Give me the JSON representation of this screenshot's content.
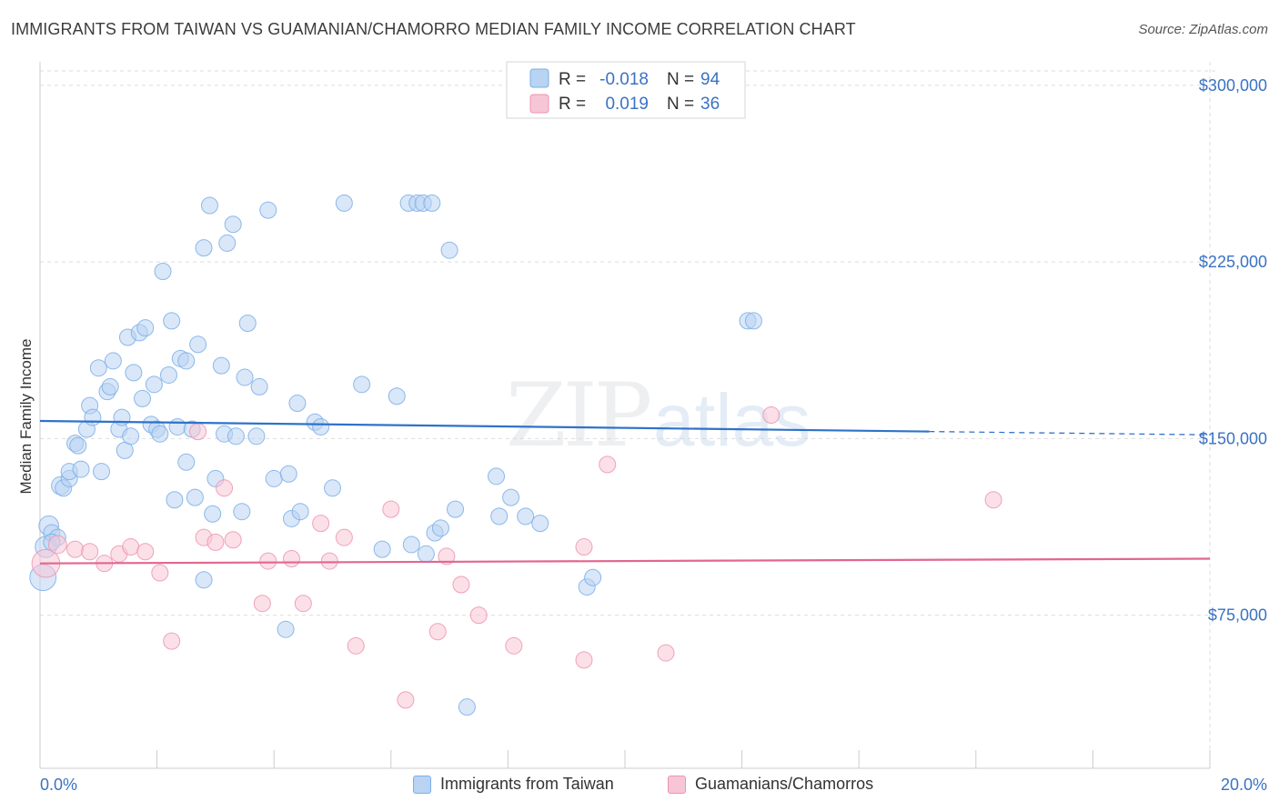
{
  "title": "IMMIGRANTS FROM TAIWAN VS GUAMANIAN/CHAMORRO MEDIAN FAMILY INCOME CORRELATION CHART",
  "source": "Source: ZipAtlas.com",
  "colors": {
    "blue": "#7aaee8",
    "blue_fill": "#b9d3f3",
    "blue_line": "#2f72c9",
    "pink": "#ee93b2",
    "pink_fill": "#f7c6d6",
    "pink_line": "#e2668f",
    "tick_text": "#3a72c4",
    "grid": "#dddddd"
  },
  "legend": {
    "rows": [
      {
        "r_label": "R =",
        "r_value": "-0.018",
        "n_label": "N =",
        "n_value": "94"
      },
      {
        "r_label": "R =",
        "r_value": "0.019",
        "n_label": "N =",
        "n_value": "36"
      }
    ]
  },
  "watermark": {
    "zip": "ZIP",
    "atlas": "atlas"
  },
  "chart_data": {
    "type": "scatter",
    "xlabel": "",
    "ylabel": "Median Family Income",
    "xlim": [
      0,
      20
    ],
    "ylim": [
      10000,
      310000
    ],
    "x_tick_labels": [
      "0.0%",
      "20.0%"
    ],
    "y_ticks": [
      75000,
      150000,
      225000,
      300000
    ],
    "y_tick_labels": [
      "$75,000",
      "$150,000",
      "$225,000",
      "$300,000"
    ],
    "grid": true,
    "legend_position": "top-center",
    "series": [
      {
        "name": "Immigrants from Taiwan",
        "trend": {
          "x0": 0,
          "y0": 157500,
          "x1": 15.2,
          "y1": 153000,
          "x_dash_end": 20,
          "y_dash_end": 151600
        },
        "points": [
          [
            0.05,
            91000,
            1.6
          ],
          [
            0.1,
            104000,
            1.3
          ],
          [
            0.15,
            113000,
            1.2
          ],
          [
            0.2,
            110000,
            1
          ],
          [
            0.3,
            108000,
            1
          ],
          [
            0.35,
            130000,
            1.1
          ],
          [
            0.4,
            129000,
            1
          ],
          [
            0.5,
            133000,
            1
          ],
          [
            0.5,
            136000,
            1
          ],
          [
            0.6,
            148000,
            1
          ],
          [
            0.65,
            147000,
            1
          ],
          [
            0.7,
            137000,
            1
          ],
          [
            0.8,
            154000,
            1
          ],
          [
            0.85,
            164000,
            1
          ],
          [
            0.9,
            159000,
            1
          ],
          [
            1.0,
            180000,
            1
          ],
          [
            1.05,
            136000,
            1
          ],
          [
            1.15,
            170000,
            1
          ],
          [
            1.2,
            172000,
            1
          ],
          [
            1.25,
            183000,
            1
          ],
          [
            1.35,
            154000,
            1
          ],
          [
            1.4,
            159000,
            1
          ],
          [
            1.45,
            145000,
            1
          ],
          [
            1.5,
            193000,
            1
          ],
          [
            1.55,
            151000,
            1
          ],
          [
            1.6,
            178000,
            1
          ],
          [
            1.7,
            195000,
            1
          ],
          [
            1.75,
            167000,
            1
          ],
          [
            1.8,
            197000,
            1
          ],
          [
            1.9,
            156000,
            1
          ],
          [
            1.95,
            173000,
            1
          ],
          [
            2.0,
            154000,
            1
          ],
          [
            2.05,
            152000,
            1
          ],
          [
            2.1,
            221000,
            1
          ],
          [
            2.2,
            177000,
            1
          ],
          [
            2.25,
            200000,
            1
          ],
          [
            2.3,
            124000,
            1
          ],
          [
            2.35,
            155000,
            1
          ],
          [
            2.4,
            184000,
            1
          ],
          [
            2.5,
            183000,
            1
          ],
          [
            2.5,
            140000,
            1
          ],
          [
            2.6,
            154000,
            1
          ],
          [
            2.65,
            125000,
            1
          ],
          [
            2.7,
            190000,
            1
          ],
          [
            2.8,
            231000,
            1
          ],
          [
            2.8,
            90000,
            1
          ],
          [
            2.9,
            249000,
            1
          ],
          [
            2.95,
            118000,
            1
          ],
          [
            3.0,
            133000,
            1
          ],
          [
            3.1,
            181000,
            1
          ],
          [
            3.15,
            152000,
            1
          ],
          [
            3.2,
            233000,
            1
          ],
          [
            3.3,
            241000,
            1
          ],
          [
            3.35,
            151000,
            1
          ],
          [
            3.45,
            119000,
            1
          ],
          [
            3.5,
            176000,
            1
          ],
          [
            3.55,
            199000,
            1
          ],
          [
            3.7,
            151000,
            1
          ],
          [
            3.75,
            172000,
            1
          ],
          [
            3.9,
            247000,
            1
          ],
          [
            4.0,
            133000,
            1
          ],
          [
            4.2,
            69000,
            1
          ],
          [
            4.25,
            135000,
            1
          ],
          [
            4.3,
            116000,
            1
          ],
          [
            4.4,
            165000,
            1
          ],
          [
            4.45,
            119000,
            1
          ],
          [
            4.7,
            157000,
            1
          ],
          [
            4.8,
            155000,
            1
          ],
          [
            5.0,
            129000,
            1
          ],
          [
            5.2,
            250000,
            1
          ],
          [
            5.5,
            173000,
            1
          ],
          [
            5.85,
            103000,
            1
          ],
          [
            6.1,
            168000,
            1
          ],
          [
            6.3,
            250000,
            1
          ],
          [
            6.35,
            105000,
            1
          ],
          [
            6.45,
            250000,
            1
          ],
          [
            6.55,
            250000,
            1
          ],
          [
            6.6,
            101000,
            1
          ],
          [
            6.7,
            250000,
            1
          ],
          [
            6.75,
            110000,
            1
          ],
          [
            6.85,
            112000,
            1
          ],
          [
            7.0,
            230000,
            1
          ],
          [
            7.1,
            120000,
            1
          ],
          [
            7.3,
            36000,
            1
          ],
          [
            7.8,
            134000,
            1
          ],
          [
            7.85,
            117000,
            1
          ],
          [
            8.05,
            125000,
            1
          ],
          [
            8.3,
            117000,
            1
          ],
          [
            8.55,
            114000,
            1
          ],
          [
            9.35,
            87000,
            1
          ],
          [
            9.45,
            91000,
            1
          ],
          [
            12.1,
            200000,
            1
          ],
          [
            12.2,
            200000,
            1
          ],
          [
            0.2,
            106000,
            1
          ]
        ]
      },
      {
        "name": "Guamanians/Chamorros",
        "trend": {
          "x0": 0,
          "y0": 97000,
          "x1": 20,
          "y1": 99000
        },
        "points": [
          [
            0.1,
            97000,
            1.7
          ],
          [
            0.3,
            105000,
            1.1
          ],
          [
            0.6,
            103000,
            1
          ],
          [
            0.85,
            102000,
            1
          ],
          [
            1.1,
            97000,
            1
          ],
          [
            1.35,
            101000,
            1
          ],
          [
            1.55,
            104000,
            1
          ],
          [
            1.8,
            102000,
            1
          ],
          [
            2.05,
            93000,
            1
          ],
          [
            2.25,
            64000,
            1
          ],
          [
            2.7,
            153000,
            1
          ],
          [
            2.8,
            108000,
            1
          ],
          [
            3.0,
            106000,
            1
          ],
          [
            3.15,
            129000,
            1
          ],
          [
            3.3,
            107000,
            1
          ],
          [
            3.8,
            80000,
            1
          ],
          [
            3.9,
            98000,
            1
          ],
          [
            4.3,
            99000,
            1
          ],
          [
            4.5,
            80000,
            1
          ],
          [
            4.8,
            114000,
            1
          ],
          [
            4.95,
            98000,
            1
          ],
          [
            5.2,
            108000,
            1
          ],
          [
            5.4,
            62000,
            1
          ],
          [
            6.0,
            120000,
            1
          ],
          [
            6.25,
            39000,
            1
          ],
          [
            6.8,
            68000,
            1
          ],
          [
            6.95,
            100000,
            1
          ],
          [
            7.2,
            88000,
            1
          ],
          [
            7.5,
            75000,
            1
          ],
          [
            8.1,
            62000,
            1
          ],
          [
            9.3,
            104000,
            1
          ],
          [
            9.3,
            56000,
            1
          ],
          [
            9.7,
            139000,
            1
          ],
          [
            10.7,
            59000,
            1
          ],
          [
            12.5,
            160000,
            1
          ],
          [
            16.3,
            124000,
            1
          ]
        ]
      }
    ]
  }
}
